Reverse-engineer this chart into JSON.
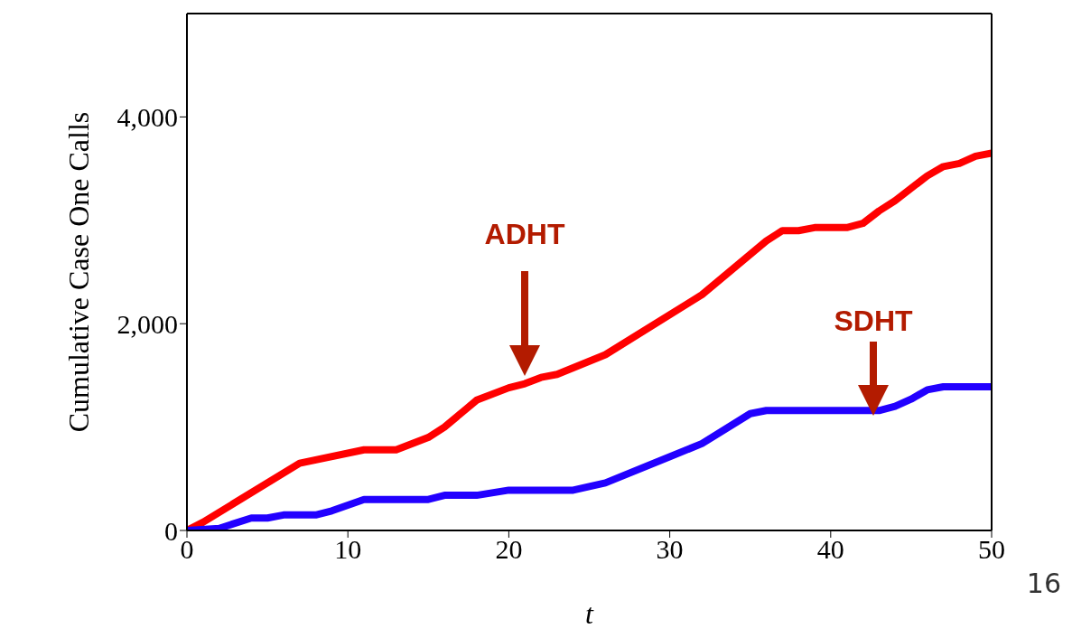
{
  "chart_data": {
    "type": "line",
    "ylabel": "Cumulative Case One Calls",
    "xlabel": "t",
    "xlim": [
      0,
      50
    ],
    "xticks": [
      0,
      10,
      20,
      30,
      40,
      50
    ],
    "ylim": [
      0,
      5000
    ],
    "yticks": [
      0,
      {
        "value": 2000,
        "label": "2,000"
      },
      {
        "value": 4000,
        "label": "4,000"
      }
    ],
    "grid": false,
    "legend": false,
    "marker": "none",
    "line_style": "solid",
    "series": [
      {
        "color": "#ff0000",
        "x": [
          0,
          1,
          7,
          11,
          13,
          15,
          16,
          18,
          20,
          21,
          22,
          23,
          26,
          32,
          36,
          37,
          38,
          39,
          41,
          42,
          43,
          44,
          46,
          47,
          48,
          49,
          50
        ],
        "values": [
          0,
          80,
          650,
          780,
          780,
          900,
          1000,
          1260,
          1380,
          1420,
          1480,
          1510,
          1700,
          2280,
          2800,
          2900,
          2900,
          2930,
          2930,
          2970,
          3090,
          3190,
          3430,
          3520,
          3550,
          3620,
          3650
        ]
      },
      {
        "color": "#2200ff",
        "x": [
          0,
          2,
          4,
          5,
          6,
          8,
          9,
          11,
          15,
          16,
          18,
          20,
          24,
          26,
          32,
          35,
          36,
          43,
          44,
          45,
          46,
          47,
          50
        ],
        "values": [
          0,
          20,
          120,
          120,
          150,
          150,
          190,
          300,
          300,
          340,
          340,
          390,
          390,
          460,
          840,
          1130,
          1160,
          1160,
          1200,
          1270,
          1360,
          1390,
          1390
        ]
      }
    ],
    "annotations": [
      "ADHT",
      "SDHT",
      "16"
    ]
  }
}
